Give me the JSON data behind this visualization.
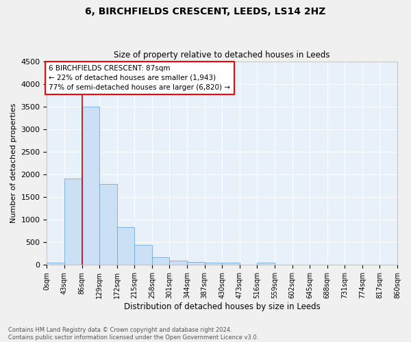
{
  "title": "6, BIRCHFIELDS CRESCENT, LEEDS, LS14 2HZ",
  "subtitle": "Size of property relative to detached houses in Leeds",
  "xlabel": "Distribution of detached houses by size in Leeds",
  "ylabel": "Number of detached properties",
  "footer_line1": "Contains HM Land Registry data © Crown copyright and database right 2024.",
  "footer_line2": "Contains public sector information licensed under the Open Government Licence v3.0.",
  "annotation_line1": "6 BIRCHFIELDS CRESCENT: 87sqm",
  "annotation_line2": "← 22% of detached houses are smaller (1,943)",
  "annotation_line3": "77% of semi-detached houses are larger (6,820) →",
  "bar_color": "#cce0f5",
  "bar_edge_color": "#5a9fd4",
  "background_color": "#e8f0fa",
  "fig_background_color": "#f0f0f0",
  "grid_color": "#ffffff",
  "vline_color": "#cc0000",
  "vline_x": 87,
  "bin_edges": [
    0,
    43,
    86,
    129,
    172,
    215,
    258,
    301,
    344,
    387,
    430,
    473,
    516,
    559,
    602,
    645,
    688,
    731,
    774,
    817,
    860
  ],
  "bin_labels": [
    "0sqm",
    "43sqm",
    "86sqm",
    "129sqm",
    "172sqm",
    "215sqm",
    "258sqm",
    "301sqm",
    "344sqm",
    "387sqm",
    "430sqm",
    "473sqm",
    "516sqm",
    "559sqm",
    "602sqm",
    "645sqm",
    "688sqm",
    "731sqm",
    "774sqm",
    "817sqm",
    "860sqm"
  ],
  "bar_heights": [
    50,
    1910,
    3500,
    1790,
    830,
    450,
    165,
    100,
    60,
    50,
    45,
    0,
    50,
    0,
    0,
    0,
    0,
    0,
    0,
    0
  ],
  "ylim": [
    0,
    4500
  ],
  "yticks": [
    0,
    500,
    1000,
    1500,
    2000,
    2500,
    3000,
    3500,
    4000,
    4500
  ]
}
